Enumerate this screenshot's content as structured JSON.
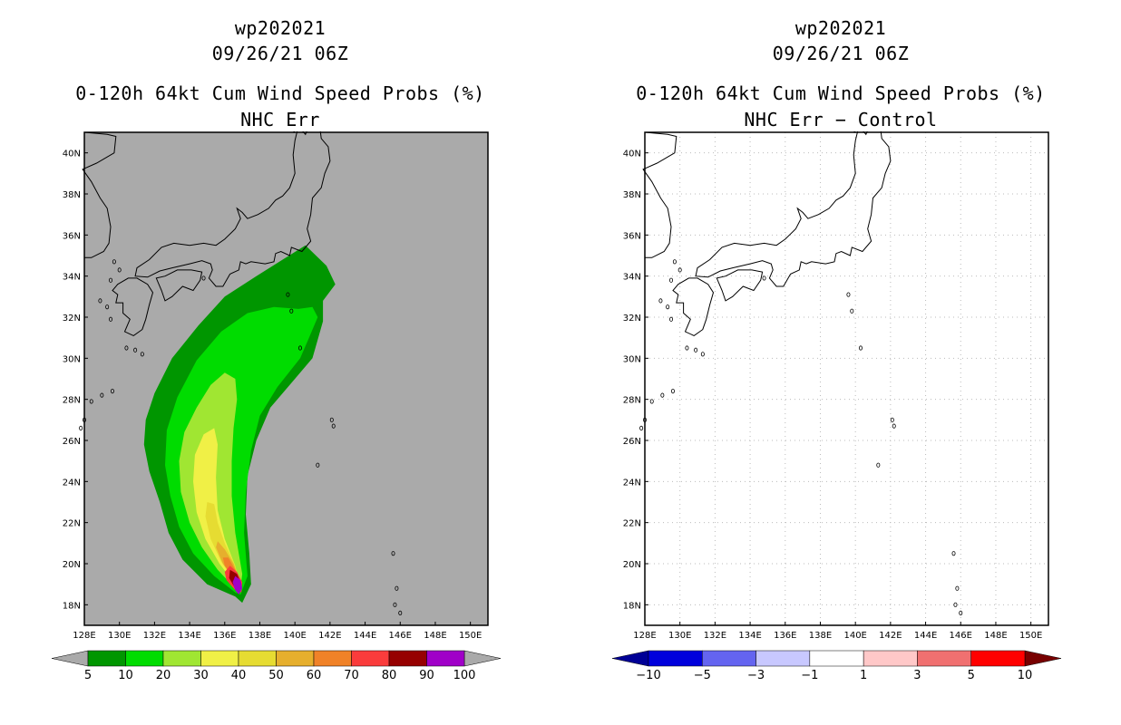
{
  "left_panel": {
    "title_line1": "wp202021",
    "title_line2": "09/26/21 06Z",
    "title_line3": "0-120h 64kt Cum Wind Speed Probs (%)",
    "title_line4": "NHC Err",
    "background_color": "#aaaaaa",
    "colorbar": {
      "labels": [
        "5",
        "10",
        "20",
        "30",
        "40",
        "50",
        "60",
        "70",
        "80",
        "90",
        "100"
      ],
      "colors": [
        "#009600",
        "#00dc00",
        "#a0e632",
        "#f0f046",
        "#e6dc32",
        "#e6af2d",
        "#f08228",
        "#fa3c3c",
        "#960000",
        "#a000c8"
      ],
      "end_color": "#aaaaaa"
    }
  },
  "right_panel": {
    "title_line1": "wp202021",
    "title_line2": "09/26/21 06Z",
    "title_line3": "0-120h 64kt Cum Wind Speed Probs (%)",
    "title_line4": "NHC Err − Control",
    "background_color": "#ffffff",
    "colorbar": {
      "labels": [
        "−10",
        "−5",
        "−3",
        "−1",
        "1",
        "3",
        "5",
        "10"
      ],
      "colors": [
        "#0000dc",
        "#6464f0",
        "#c8c8ff",
        "#ffffff",
        "#ffc8c8",
        "#f07070",
        "#ff0000"
      ],
      "end_left_color": "#000096",
      "end_right_color": "#780000"
    }
  },
  "axes": {
    "lon_ticks": [
      "128E",
      "130E",
      "132E",
      "134E",
      "136E",
      "138E",
      "140E",
      "142E",
      "144E",
      "146E",
      "148E",
      "150E"
    ],
    "lat_ticks": [
      "18N",
      "20N",
      "22N",
      "24N",
      "26N",
      "28N",
      "30N",
      "32N",
      "34N",
      "36N",
      "38N",
      "40N"
    ],
    "lon_range": [
      128,
      151
    ],
    "lat_range": [
      17,
      41
    ]
  },
  "probability_field": {
    "description_levels": [
      5,
      10,
      20,
      30,
      40,
      50,
      60,
      70,
      80,
      90
    ],
    "max_probability_location": {
      "lon": 136.8,
      "lat": 19.0
    }
  }
}
